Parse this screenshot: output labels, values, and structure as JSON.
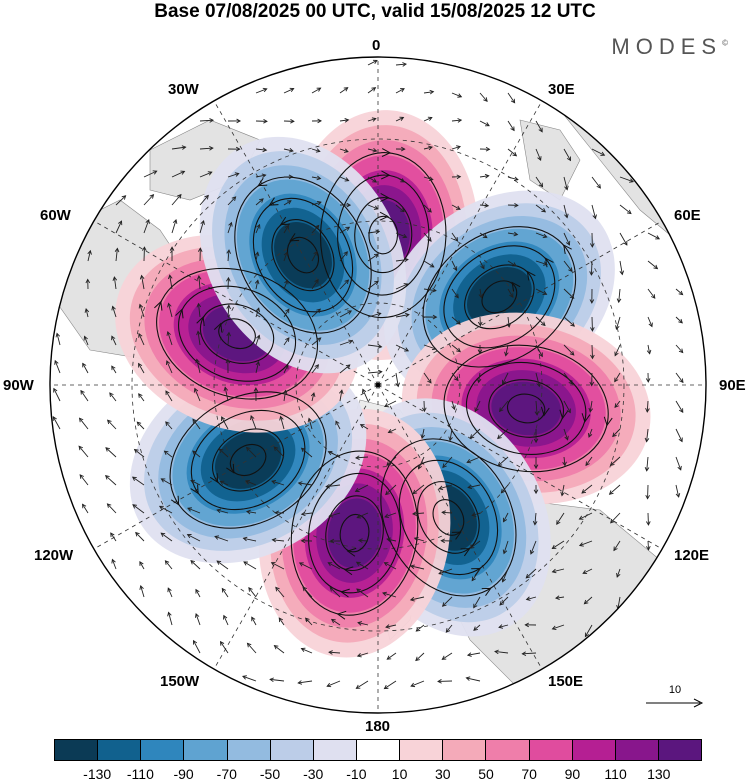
{
  "title": "Base 07/08/2025 00 UTC, valid 15/08/2025 12 UTC",
  "brand": "MODES",
  "brand_mark": "©",
  "longitude_labels": {
    "n0": "0",
    "e30": "30E",
    "e60": "60E",
    "e90": "90E",
    "e120": "120E",
    "e150": "150E",
    "s180": "180",
    "w150": "150W",
    "w120": "120W",
    "w90": "90W",
    "w60": "60W",
    "w30": "30W"
  },
  "reference_vector": {
    "label": "10",
    "value": 10
  },
  "colorbar": {
    "colors": [
      "#0b3a55",
      "#11618e",
      "#2f86bd",
      "#5fa3d1",
      "#93bbe0",
      "#bccde8",
      "#dfe0f0",
      "#ffffff",
      "#f8d3d8",
      "#f4aab9",
      "#ef7eaa",
      "#e04c9e",
      "#b51f93",
      "#88168c",
      "#5b167e"
    ],
    "tick_labels": [
      "-130",
      "-110",
      "-90",
      "-70",
      "-50",
      "-30",
      "-10",
      "10",
      "30",
      "50",
      "70",
      "90",
      "110",
      "130"
    ]
  },
  "anomaly_centers": [
    {
      "sign": "positive",
      "bearing_deg": 2,
      "value": 140
    },
    {
      "sign": "negative",
      "bearing_deg": 54,
      "value": -140
    },
    {
      "sign": "positive",
      "bearing_deg": 99,
      "value": 140
    },
    {
      "sign": "negative",
      "bearing_deg": 152,
      "value": -140
    },
    {
      "sign": "positive",
      "bearing_deg": 189,
      "value": 140
    },
    {
      "sign": "negative",
      "bearing_deg": 240,
      "value": -140
    },
    {
      "sign": "positive",
      "bearing_deg": 290,
      "value": 140
    },
    {
      "sign": "negative",
      "bearing_deg": 330,
      "value": -140
    }
  ]
}
